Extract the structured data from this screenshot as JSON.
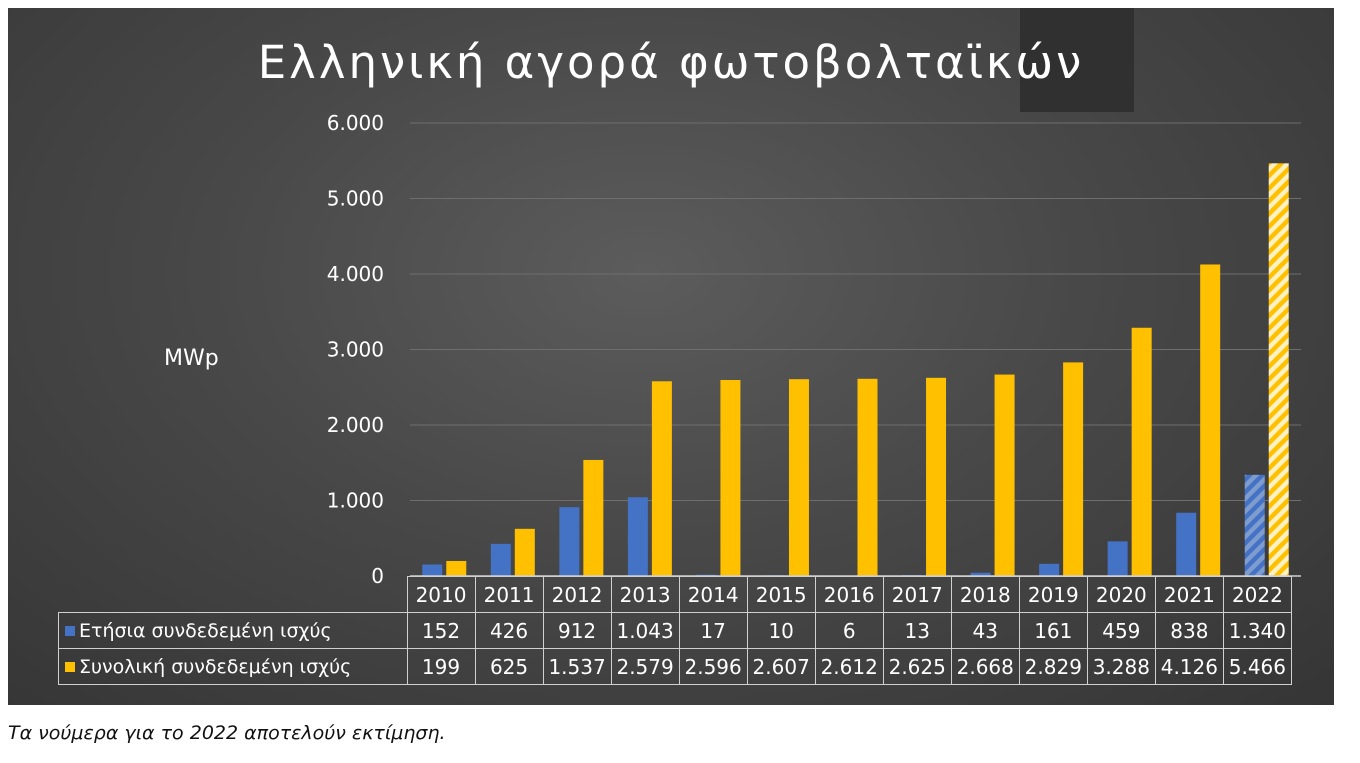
{
  "chart_data": {
    "type": "bar",
    "title": "Ελληνική αγορά φωτοβολταϊκών",
    "ylabel": "MWp",
    "ylim": [
      0,
      6000
    ],
    "yticks": [
      "0",
      "1.000",
      "2.000",
      "3.000",
      "4.000",
      "5.000",
      "6.000"
    ],
    "ytick_values": [
      0,
      1000,
      2000,
      3000,
      4000,
      5000,
      6000
    ],
    "categories": [
      "2010",
      "2011",
      "2012",
      "2013",
      "2014",
      "2015",
      "2016",
      "2017",
      "2018",
      "2019",
      "2020",
      "2021",
      "2022"
    ],
    "series": [
      {
        "name": "Ετήσια συνδεδεμένη ισχύς",
        "color": "#4472c4",
        "values": [
          152,
          426,
          912,
          1043,
          17,
          10,
          6,
          13,
          43,
          161,
          459,
          838,
          1340
        ],
        "labels": [
          "152",
          "426",
          "912",
          "1.043",
          "17",
          "10",
          "6",
          "13",
          "43",
          "161",
          "459",
          "838",
          "1.340"
        ]
      },
      {
        "name": "Συνολική συνδεδεμένη ισχύς",
        "color": "#ffc000",
        "values": [
          199,
          625,
          1537,
          2579,
          2596,
          2607,
          2612,
          2625,
          2668,
          2829,
          3288,
          4126,
          5466
        ],
        "labels": [
          "199",
          "625",
          "1.537",
          "2.579",
          "2.596",
          "2.607",
          "2.612",
          "2.625",
          "2.668",
          "2.829",
          "3.288",
          "4.126",
          "5.466"
        ]
      }
    ],
    "estimated_categories": [
      "2022"
    ],
    "grid": true,
    "legend": "data-table"
  },
  "footnote": "Τα νούμερα για το 2022 αποτελούν εκτίμηση."
}
